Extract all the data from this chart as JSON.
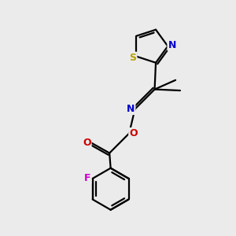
{
  "background_color": "#ebebeb",
  "bond_color": "#000000",
  "atom_colors": {
    "S": "#b8a000",
    "N": "#0000cc",
    "O": "#cc0000",
    "F": "#cc00cc",
    "C": "#000000"
  },
  "figsize": [
    3.0,
    3.0
  ],
  "dpi": 100
}
